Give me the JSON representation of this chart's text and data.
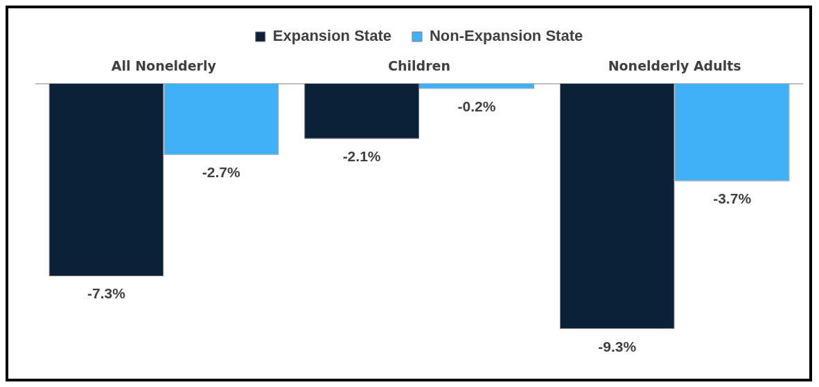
{
  "chart_data": {
    "type": "bar",
    "categories": [
      "All Nonelderly",
      "Children",
      "Nonelderly Adults"
    ],
    "series": [
      {
        "name": "Expansion State",
        "color": "#0a2137",
        "values": [
          -7.3,
          -2.1,
          -9.3
        ],
        "value_labels": [
          "-7.3%",
          "-2.1%",
          "-9.3%"
        ]
      },
      {
        "name": "Non-Expansion State",
        "color": "#41b0f5",
        "values": [
          -2.7,
          -0.2,
          -3.7
        ],
        "value_labels": [
          "-2.7%",
          "-0.2%",
          "-3.7%"
        ]
      }
    ],
    "legend": "top",
    "grid": false
  }
}
